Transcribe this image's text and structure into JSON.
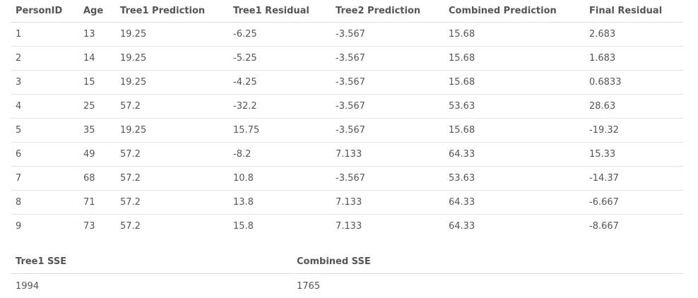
{
  "main_table": {
    "headers": [
      "PersonID",
      "Age",
      "Tree1 Prediction",
      "Tree1 Residual",
      "Tree2 Prediction",
      "Combined Prediction",
      "Final Residual"
    ],
    "rows": [
      [
        "1",
        "13",
        "19.25",
        "-6.25",
        "-3.567",
        "15.68",
        "2.683"
      ],
      [
        "2",
        "14",
        "19.25",
        "-5.25",
        "-3.567",
        "15.68",
        "1.683"
      ],
      [
        "3",
        "15",
        "19.25",
        "-4.25",
        "-3.567",
        "15.68",
        "0.6833"
      ],
      [
        "4",
        "25",
        "57.2",
        "-32.2",
        "-3.567",
        "53.63",
        "28.63"
      ],
      [
        "5",
        "35",
        "19.25",
        "15.75",
        "-3.567",
        "15.68",
        "-19.32"
      ],
      [
        "6",
        "49",
        "57.2",
        "-8.2",
        "7.133",
        "64.33",
        "15.33"
      ],
      [
        "7",
        "68",
        "57.2",
        "10.8",
        "-3.567",
        "53.63",
        "-14.37"
      ],
      [
        "8",
        "71",
        "57.2",
        "13.8",
        "7.133",
        "64.33",
        "-6.667"
      ],
      [
        "9",
        "73",
        "57.2",
        "15.8",
        "7.133",
        "64.33",
        "-8.667"
      ]
    ]
  },
  "sse_table": {
    "headers": [
      "Tree1 SSE",
      "Combined SSE"
    ],
    "values": [
      "1994",
      "1765"
    ]
  }
}
